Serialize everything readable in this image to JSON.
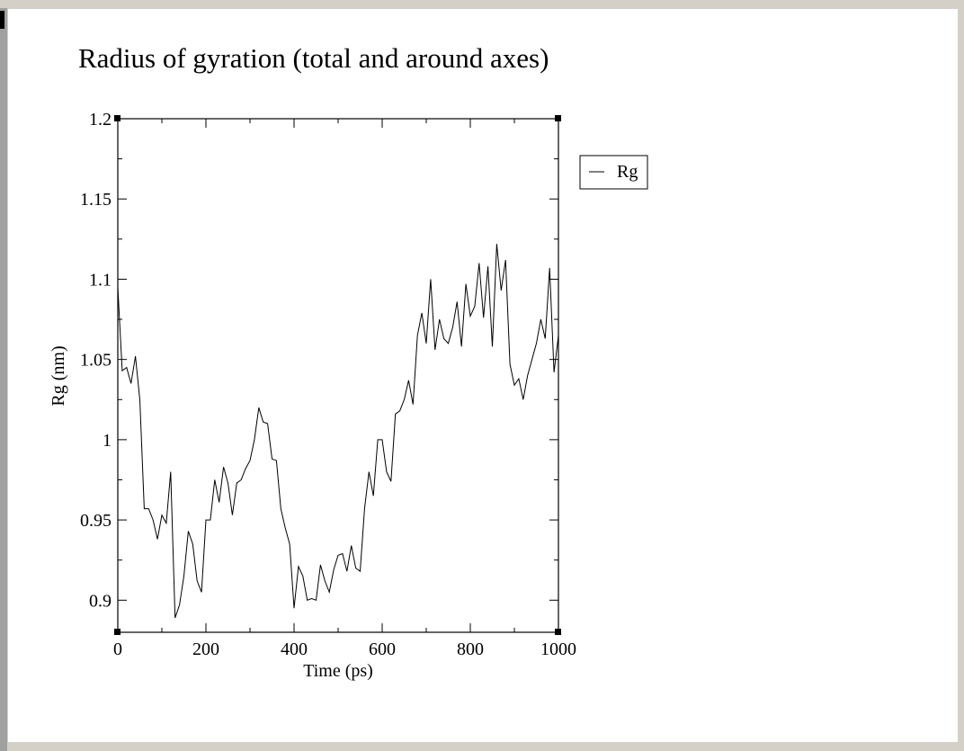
{
  "chart_data": {
    "type": "line",
    "title": "Radius of gyration (total and around axes)",
    "x_label": "Time (ps)",
    "y_label": "Rg (nm)",
    "x": [
      0,
      10,
      20,
      30,
      40,
      50,
      60,
      70,
      80,
      90,
      100,
      110,
      120,
      130,
      140,
      150,
      160,
      170,
      180,
      190,
      200,
      210,
      220,
      230,
      240,
      250,
      260,
      270,
      280,
      290,
      300,
      310,
      320,
      330,
      340,
      350,
      360,
      370,
      380,
      390,
      400,
      410,
      420,
      430,
      440,
      450,
      460,
      470,
      480,
      490,
      500,
      510,
      520,
      530,
      540,
      550,
      560,
      570,
      580,
      590,
      600,
      610,
      620,
      630,
      640,
      650,
      660,
      670,
      680,
      690,
      700,
      710,
      720,
      730,
      740,
      750,
      760,
      770,
      780,
      790,
      800,
      810,
      820,
      830,
      840,
      850,
      860,
      870,
      880,
      890,
      900,
      910,
      920,
      930,
      940,
      950,
      960,
      970,
      980,
      990,
      1000
    ],
    "series": [
      {
        "name": "Rg",
        "color": "#000000",
        "values": [
          1.095,
          1.043,
          1.045,
          1.035,
          1.052,
          1.025,
          0.957,
          0.957,
          0.95,
          0.938,
          0.953,
          0.948,
          0.98,
          0.889,
          0.897,
          0.915,
          0.943,
          0.935,
          0.912,
          0.905,
          0.95,
          0.95,
          0.975,
          0.961,
          0.983,
          0.973,
          0.953,
          0.973,
          0.975,
          0.982,
          0.987,
          1.0,
          1.02,
          1.011,
          1.01,
          0.988,
          0.987,
          0.957,
          0.945,
          0.935,
          0.895,
          0.921,
          0.915,
          0.9,
          0.901,
          0.9,
          0.922,
          0.912,
          0.905,
          0.919,
          0.928,
          0.929,
          0.918,
          0.934,
          0.92,
          0.918,
          0.957,
          0.98,
          0.965,
          1.0,
          1.0,
          0.98,
          0.974,
          1.016,
          1.018,
          1.025,
          1.037,
          1.022,
          1.065,
          1.079,
          1.06,
          1.1,
          1.056,
          1.075,
          1.063,
          1.06,
          1.07,
          1.086,
          1.058,
          1.097,
          1.077,
          1.083,
          1.11,
          1.076,
          1.108,
          1.058,
          1.122,
          1.093,
          1.112,
          1.047,
          1.034,
          1.038,
          1.025,
          1.04,
          1.05,
          1.06,
          1.075,
          1.063,
          1.107,
          1.042,
          1.065
        ]
      }
    ],
    "xlim": [
      0,
      1000
    ],
    "xticks": [
      0,
      200,
      400,
      600,
      800,
      1000
    ],
    "xminorticks": [
      100,
      300,
      500,
      700,
      900
    ],
    "ylim": [
      0.88,
      1.2
    ],
    "yticks": [
      0.9,
      0.95,
      1,
      1.05,
      1.1,
      1.15,
      1.2
    ],
    "yminorticks": [
      0.925,
      0.975,
      1.025,
      1.075,
      1.125,
      1.175
    ],
    "grid": false,
    "legend": "right"
  }
}
